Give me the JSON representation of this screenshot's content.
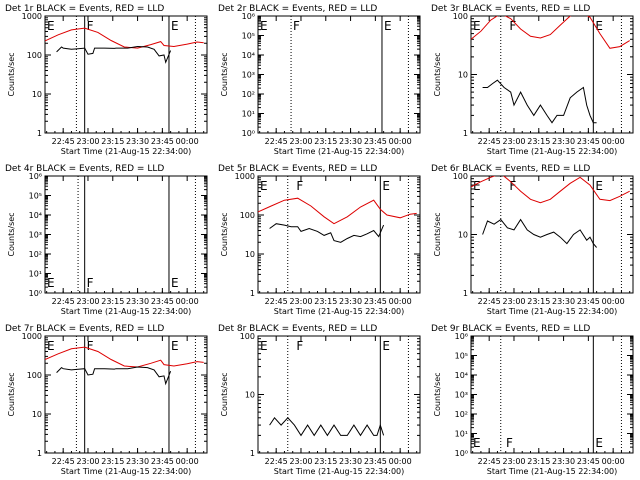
{
  "figure": {
    "background": "#ffffff",
    "foreground": "#000000",
    "events_color": "#000000",
    "lld_color": "#dd0000"
  },
  "chart_data": [
    {
      "type": "line",
      "title": "Det 1r BLACK = Events, RED = LLD",
      "xlabel": "Start Time (21-Aug-15 22:34:00)",
      "ylabel": "Counts/sec",
      "xlim": [
        "22:34",
        "00:12"
      ],
      "xticks": [
        "22:45",
        "23:00",
        "23:15",
        "23:30",
        "23:45",
        "00:00"
      ],
      "ylim": [
        1,
        1000
      ],
      "ylog": true,
      "yticks": [
        "1",
        "10",
        "100",
        "1000"
      ],
      "markers": [
        {
          "label": "E",
          "time": "22:34",
          "style": "solid"
        },
        {
          "label": "F",
          "time": "22:58",
          "style": "solid"
        },
        {
          "label": "E",
          "time": "23:49",
          "style": "solid"
        }
      ],
      "dotted_lines": [
        "22:53",
        "00:05"
      ],
      "series": [
        {
          "role": "LLD",
          "color": "#dd0000",
          "times": [
            "22:34",
            "22:42",
            "22:50",
            "22:58",
            "23:06",
            "23:14",
            "23:22",
            "23:30",
            "23:38",
            "23:44",
            "23:46",
            "23:52",
            "00:00",
            "00:06",
            "00:10"
          ],
          "values": [
            230,
            330,
            440,
            490,
            380,
            235,
            160,
            150,
            185,
            220,
            175,
            165,
            190,
            215,
            205
          ]
        },
        {
          "role": "Events",
          "color": "#000000",
          "times": [
            "22:41",
            "22:44",
            "22:45",
            "22:50",
            "22:54",
            "22:58",
            "23:00",
            "23:03",
            "23:04",
            "23:10",
            "23:16",
            "23:17",
            "23:24",
            "23:30",
            "23:36",
            "23:40",
            "23:43",
            "23:46",
            "23:47",
            "23:50"
          ],
          "values": [
            120,
            160,
            150,
            140,
            145,
            150,
            105,
            110,
            150,
            150,
            148,
            150,
            150,
            165,
            160,
            140,
            95,
            100,
            65,
            130
          ]
        }
      ]
    },
    {
      "type": "line",
      "title": "Det 2r BLACK = Events, RED = LLD",
      "xlabel": "Start Time (21-Aug-15 22:34:00)",
      "ylabel": "Counts/sec",
      "xlim": [
        "22:34",
        "00:12"
      ],
      "xticks": [
        "22:45",
        "23:00",
        "23:15",
        "23:30",
        "23:45",
        "00:00"
      ],
      "ylim": [
        1,
        1000000
      ],
      "ylog": true,
      "yticks": [
        "10⁰",
        "10¹",
        "10²",
        "10³",
        "10⁴",
        "10⁵",
        "10⁶"
      ],
      "markers": [
        {
          "label": "E",
          "time": "22:34",
          "style": "solid"
        },
        {
          "label": "F",
          "time": "22:54",
          "style": "dotted"
        },
        {
          "label": "E",
          "time": "23:49",
          "style": "solid"
        }
      ],
      "dotted_lines": [
        "22:54",
        "00:05"
      ],
      "series": []
    },
    {
      "type": "line",
      "title": "Det 3r BLACK = Events, RED = LLD",
      "xlabel": "Start Time (21-Aug-15 22:34:00)",
      "ylabel": "Counts/sec",
      "xlim": [
        "22:34",
        "00:12"
      ],
      "xticks": [
        "22:45",
        "23:00",
        "23:15",
        "23:30",
        "23:45",
        "00:00"
      ],
      "ylim": [
        1,
        100
      ],
      "ylog": true,
      "yticks": [
        "1",
        "10",
        "100"
      ],
      "markers": [
        {
          "label": "E",
          "time": "22:34",
          "style": "solid"
        },
        {
          "label": "F",
          "time": "22:56",
          "style": "dotted"
        },
        {
          "label": "E",
          "time": "23:48",
          "style": "solid"
        }
      ],
      "dotted_lines": [
        "22:52",
        "00:05"
      ],
      "series": [
        {
          "role": "LLD",
          "color": "#dd0000",
          "times": [
            "22:34",
            "22:40",
            "22:46",
            "22:52",
            "22:58",
            "23:04",
            "23:10",
            "23:16",
            "23:22",
            "23:28",
            "23:34",
            "23:40",
            "23:46",
            "23:52",
            "23:58",
            "00:04",
            "00:10"
          ],
          "values": [
            40,
            55,
            85,
            110,
            90,
            60,
            45,
            42,
            48,
            70,
            100,
            120,
            95,
            50,
            28,
            30,
            38
          ]
        },
        {
          "role": "Events",
          "color": "#000000",
          "times": [
            "22:41",
            "22:44",
            "22:47",
            "22:50",
            "22:54",
            "22:58",
            "23:00",
            "23:04",
            "23:08",
            "23:12",
            "23:16",
            "23:20",
            "23:23",
            "23:26",
            "23:30",
            "23:34",
            "23:38",
            "23:42",
            "23:44",
            "23:46",
            "23:48",
            "23:50"
          ],
          "values": [
            6,
            6,
            7,
            8,
            6,
            5,
            3,
            5,
            3,
            2,
            3,
            2,
            1.5,
            2,
            2,
            4,
            5,
            6,
            3,
            2,
            1.5,
            1.5
          ]
        }
      ]
    },
    {
      "type": "line",
      "title": "Det 4r BLACK = Events, RED = LLD",
      "xlabel": "Start Time (21-Aug-15 22:34:00)",
      "ylabel": "Counts/sec",
      "xlim": [
        "22:34",
        "00:12"
      ],
      "xticks": [
        "22:45",
        "23:00",
        "23:15",
        "23:30",
        "23:45",
        "00:00"
      ],
      "ylim": [
        1,
        1000000
      ],
      "ylog": true,
      "yticks": [
        "10⁰",
        "10¹",
        "10²",
        "10³",
        "10⁴",
        "10⁵",
        "10⁶"
      ],
      "markers": [
        {
          "label": "E",
          "time": "22:34",
          "style": "solid"
        },
        {
          "label": "F",
          "time": "22:58",
          "style": "solid"
        },
        {
          "label": "E",
          "time": "23:49",
          "style": "solid"
        }
      ],
      "dotted_lines": [
        "22:54",
        "00:05"
      ],
      "series": []
    },
    {
      "type": "line",
      "title": "Det 5r BLACK = Events, RED = LLD",
      "xlabel": "Start Time (21-Aug-15 22:34:00)",
      "ylabel": "Counts/sec",
      "xlim": [
        "22:34",
        "00:12"
      ],
      "xticks": [
        "22:45",
        "23:00",
        "23:15",
        "23:30",
        "23:45",
        "00:00"
      ],
      "ylim": [
        1,
        1000
      ],
      "ylog": true,
      "yticks": [
        "1",
        "10",
        "100",
        "1000"
      ],
      "markers": [
        {
          "label": "E",
          "time": "22:34",
          "style": "solid"
        },
        {
          "label": "F",
          "time": "22:56",
          "style": "dotted"
        },
        {
          "label": "E",
          "time": "23:48",
          "style": "solid"
        }
      ],
      "dotted_lines": [
        "22:52",
        "00:05"
      ],
      "series": [
        {
          "role": "LLD",
          "color": "#dd0000",
          "times": [
            "22:34",
            "22:42",
            "22:50",
            "22:58",
            "23:06",
            "23:14",
            "23:20",
            "23:28",
            "23:36",
            "23:44",
            "23:48",
            "23:52",
            "00:00",
            "00:06",
            "00:10"
          ],
          "values": [
            120,
            170,
            240,
            270,
            170,
            90,
            60,
            90,
            160,
            240,
            140,
            100,
            85,
            105,
            110
          ]
        },
        {
          "role": "Events",
          "color": "#000000",
          "times": [
            "22:41",
            "22:45",
            "22:50",
            "22:54",
            "22:58",
            "23:00",
            "23:05",
            "23:10",
            "23:14",
            "23:18",
            "23:20",
            "23:24",
            "23:28",
            "23:32",
            "23:36",
            "23:40",
            "23:44",
            "23:47",
            "23:48",
            "23:50"
          ],
          "values": [
            45,
            60,
            55,
            50,
            50,
            38,
            45,
            38,
            30,
            35,
            22,
            20,
            25,
            30,
            28,
            33,
            40,
            28,
            35,
            55
          ]
        }
      ]
    },
    {
      "type": "line",
      "title": "Det 6r BLACK = Events, RED = LLD",
      "xlabel": "Start Time (21-Aug-15 22:34:00)",
      "ylabel": "Counts/sec",
      "xlim": [
        "22:34",
        "00:12"
      ],
      "xticks": [
        "22:45",
        "23:00",
        "23:15",
        "23:30",
        "23:45",
        "00:00"
      ],
      "ylim": [
        1,
        100
      ],
      "ylog": true,
      "yticks": [
        "1",
        "10",
        "100"
      ],
      "markers": [
        {
          "label": "E",
          "time": "22:34",
          "style": "solid"
        },
        {
          "label": "F",
          "time": "22:56",
          "style": "dotted"
        },
        {
          "label": "E",
          "time": "23:48",
          "style": "solid"
        }
      ],
      "dotted_lines": [
        "22:52",
        "00:05"
      ],
      "series": [
        {
          "role": "LLD",
          "color": "#dd0000",
          "times": [
            "22:34",
            "22:40",
            "22:46",
            "22:52",
            "22:58",
            "23:04",
            "23:10",
            "23:16",
            "23:22",
            "23:28",
            "23:34",
            "23:40",
            "23:46",
            "23:52",
            "23:58",
            "00:04",
            "00:10"
          ],
          "values": [
            65,
            80,
            95,
            110,
            80,
            55,
            40,
            35,
            40,
            55,
            75,
            95,
            70,
            40,
            38,
            45,
            55
          ]
        },
        {
          "role": "Events",
          "color": "#000000",
          "times": [
            "22:41",
            "22:44",
            "22:48",
            "22:52",
            "22:56",
            "23:00",
            "23:04",
            "23:08",
            "23:12",
            "23:16",
            "23:20",
            "23:24",
            "23:28",
            "23:32",
            "23:36",
            "23:40",
            "23:44",
            "23:46",
            "23:48",
            "23:50"
          ],
          "values": [
            10,
            17,
            15,
            18,
            13,
            12,
            18,
            12,
            10,
            9,
            10,
            11,
            9,
            7,
            10,
            12,
            8,
            9,
            7,
            6
          ]
        }
      ]
    },
    {
      "type": "line",
      "title": "Det 7r BLACK = Events, RED = LLD",
      "xlabel": "Start Time (21-Aug-15 22:34:00)",
      "ylabel": "Counts/sec",
      "xlim": [
        "22:34",
        "00:12"
      ],
      "xticks": [
        "22:45",
        "23:00",
        "23:15",
        "23:30",
        "23:45",
        "00:00"
      ],
      "ylim": [
        1,
        1000
      ],
      "ylog": true,
      "yticks": [
        "1",
        "10",
        "100",
        "1000"
      ],
      "markers": [
        {
          "label": "E",
          "time": "22:34",
          "style": "solid"
        },
        {
          "label": "F",
          "time": "22:58",
          "style": "solid"
        },
        {
          "label": "E",
          "time": "23:49",
          "style": "solid"
        }
      ],
      "dotted_lines": [
        "22:53",
        "00:05"
      ],
      "series": [
        {
          "role": "LLD",
          "color": "#dd0000",
          "times": [
            "22:34",
            "22:42",
            "22:50",
            "22:58",
            "23:06",
            "23:14",
            "23:22",
            "23:30",
            "23:38",
            "23:44",
            "23:46",
            "23:52",
            "00:00",
            "00:06",
            "00:10"
          ],
          "values": [
            250,
            350,
            470,
            520,
            400,
            250,
            170,
            160,
            200,
            240,
            185,
            170,
            195,
            220,
            210
          ]
        },
        {
          "role": "Events",
          "color": "#000000",
          "times": [
            "22:41",
            "22:44",
            "22:45",
            "22:50",
            "22:54",
            "22:58",
            "23:00",
            "23:03",
            "23:04",
            "23:10",
            "23:16",
            "23:17",
            "23:24",
            "23:30",
            "23:36",
            "23:40",
            "23:43",
            "23:46",
            "23:47",
            "23:50"
          ],
          "values": [
            115,
            155,
            145,
            135,
            140,
            145,
            100,
            105,
            145,
            145,
            142,
            145,
            145,
            160,
            155,
            135,
            90,
            95,
            60,
            125
          ]
        }
      ]
    },
    {
      "type": "line",
      "title": "Det 8r BLACK = Events, RED = LLD",
      "xlabel": "Start Time (21-Aug-15 22:34:00)",
      "ylabel": "Counts/sec",
      "xlim": [
        "22:34",
        "00:12"
      ],
      "xticks": [
        "22:45",
        "23:00",
        "23:15",
        "23:30",
        "23:45",
        "00:00"
      ],
      "ylim": [
        1,
        100
      ],
      "ylog": true,
      "yticks": [
        "1",
        "10",
        "100"
      ],
      "markers": [
        {
          "label": "E",
          "time": "22:34",
          "style": "solid"
        },
        {
          "label": "F",
          "time": "22:56",
          "style": "dotted"
        },
        {
          "label": "E",
          "time": "23:48",
          "style": "solid"
        }
      ],
      "dotted_lines": [
        "22:52",
        "00:05"
      ],
      "series": [
        {
          "role": "Events",
          "color": "#000000",
          "times": [
            "22:41",
            "22:44",
            "22:48",
            "22:52",
            "22:56",
            "23:00",
            "23:04",
            "23:08",
            "23:12",
            "23:16",
            "23:20",
            "23:24",
            "23:28",
            "23:32",
            "23:36",
            "23:40",
            "23:44",
            "23:46",
            "23:48",
            "23:50"
          ],
          "values": [
            3,
            4,
            3,
            4,
            3,
            2,
            3,
            2,
            3,
            2,
            3,
            2,
            2,
            3,
            2,
            3,
            2,
            2,
            3,
            2
          ]
        }
      ]
    },
    {
      "type": "line",
      "title": "Det 9r BLACK = Events, RED = LLD",
      "xlabel": "Start Time (21-Aug-15 22:34:00)",
      "ylabel": "Counts/sec",
      "xlim": [
        "22:34",
        "00:12"
      ],
      "xticks": [
        "22:45",
        "23:00",
        "23:15",
        "23:30",
        "23:45",
        "00:00"
      ],
      "ylim": [
        1,
        1000000
      ],
      "ylog": true,
      "yticks": [
        "10⁰",
        "10¹",
        "10²",
        "10³",
        "10⁴",
        "10⁵",
        "10⁶"
      ],
      "markers": [
        {
          "label": "E",
          "time": "22:34",
          "style": "solid"
        },
        {
          "label": "F",
          "time": "22:54",
          "style": "dotted"
        },
        {
          "label": "E",
          "time": "23:48",
          "style": "solid"
        }
      ],
      "dotted_lines": [
        "22:52",
        "00:05"
      ],
      "series": []
    }
  ]
}
